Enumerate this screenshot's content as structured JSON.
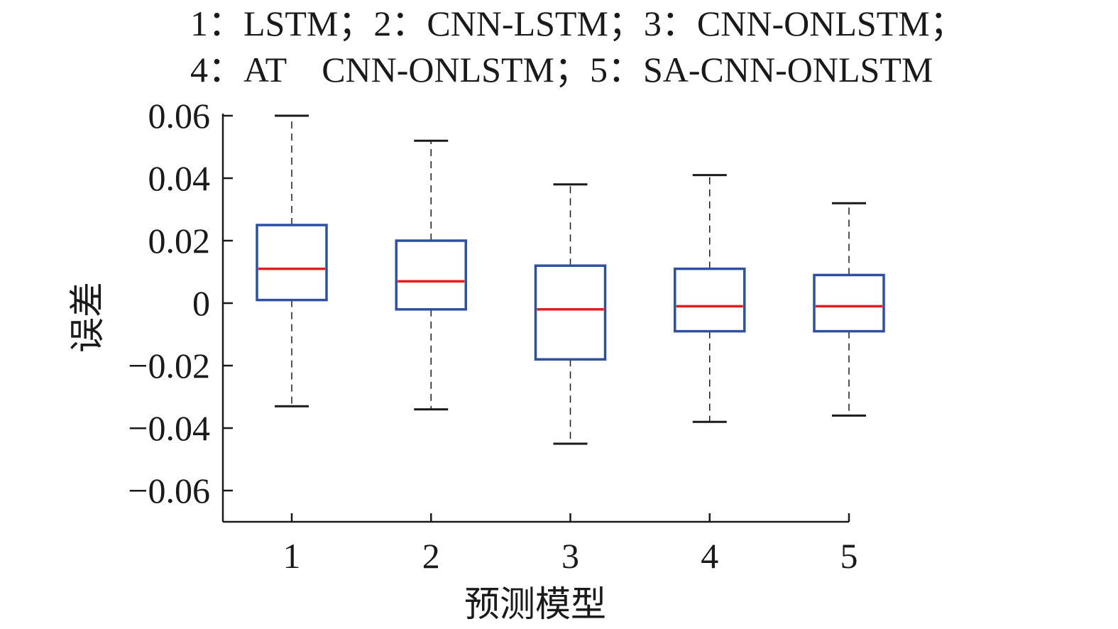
{
  "chart_data": {
    "type": "box",
    "title_lines": [
      "1：LSTM；2：CNN-LSTM；3：CNN-ONLSTM；",
      "4：AT　CNN-ONLSTM；5：SA-CNN-ONLSTM"
    ],
    "xlabel": "预测模型",
    "ylabel": "误差",
    "ylim": [
      -0.07,
      0.06
    ],
    "yticks": [
      0.06,
      0.04,
      0.02,
      0,
      -0.02,
      -0.04,
      -0.06
    ],
    "ytick_labels": [
      "0.06",
      "0.04",
      "0.02",
      "0",
      "−0.02",
      "−0.04",
      "−0.06"
    ],
    "categories": [
      "1",
      "2",
      "3",
      "4",
      "5"
    ],
    "boxes": [
      {
        "whisker_low": -0.033,
        "q1": 0.001,
        "median": 0.011,
        "q3": 0.025,
        "whisker_high": 0.06
      },
      {
        "whisker_low": -0.034,
        "q1": -0.002,
        "median": 0.007,
        "q3": 0.02,
        "whisker_high": 0.052
      },
      {
        "whisker_low": -0.045,
        "q1": -0.018,
        "median": -0.002,
        "q3": 0.012,
        "whisker_high": 0.038
      },
      {
        "whisker_low": -0.038,
        "q1": -0.009,
        "median": -0.001,
        "q3": 0.011,
        "whisker_high": 0.041
      },
      {
        "whisker_low": -0.036,
        "q1": -0.009,
        "median": -0.001,
        "q3": 0.009,
        "whisker_high": 0.032
      }
    ],
    "colors": {
      "box": "#2f4fa0",
      "median": "#e02020",
      "whisker": "#1a1a1a",
      "axis": "#1a1a1a"
    },
    "grid": false
  }
}
